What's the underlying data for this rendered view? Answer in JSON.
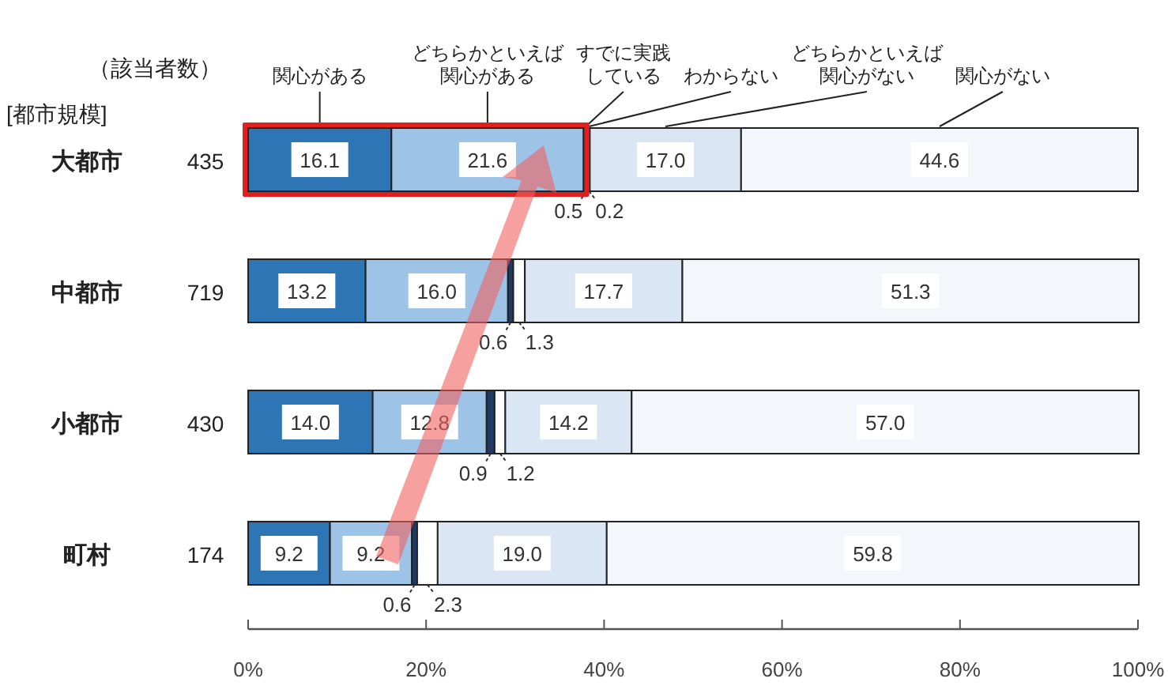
{
  "chart_data": {
    "type": "bar",
    "orientation": "horizontal",
    "stacked": true,
    "categories": [
      "大都市",
      "中都市",
      "小都市",
      "町村"
    ],
    "ylabel": "[都市規模]",
    "annotations": [
      "（該当者数）",
      "435",
      "719",
      "430",
      "174"
    ],
    "series": [
      {
        "name": "関心がある",
        "color": "#2e75b6",
        "values": [
          16.1,
          13.2,
          14.0,
          9.2
        ],
        "value_labels": [
          "16.1",
          "13.2",
          "14.0",
          "9.2"
        ]
      },
      {
        "name": "どちらかといえば関心がある",
        "color": "#9dc3e6",
        "values": [
          21.6,
          16.0,
          12.8,
          9.2
        ],
        "value_labels": [
          "21.6",
          "16.0",
          "12.8",
          "9.2"
        ]
      },
      {
        "name": "すでに実践している",
        "color": "#1f3864",
        "values": [
          0.5,
          0.6,
          0.9,
          0.6
        ],
        "value_labels": [
          "0.5",
          "0.6",
          "0.9",
          "0.6"
        ]
      },
      {
        "name": "わからない",
        "color": "#ffffff",
        "values": [
          0.2,
          1.3,
          1.2,
          2.3
        ],
        "value_labels": [
          "0.2",
          "1.3",
          "1.2",
          "2.3"
        ]
      },
      {
        "name": "どちらかといえば関心がない",
        "color": "#dae6f3",
        "values": [
          17.0,
          17.7,
          14.2,
          19.0
        ],
        "value_labels": [
          "17.0",
          "17.7",
          "14.2",
          "19.0"
        ]
      },
      {
        "name": "関心がない",
        "color": "#f3f7fc",
        "values": [
          44.6,
          51.3,
          57.0,
          59.8
        ],
        "value_labels": [
          "44.6",
          "51.3",
          "57.0",
          "59.8"
        ]
      }
    ],
    "xlim": [
      0,
      100
    ],
    "xticks": [
      {
        "value": 0,
        "label": "0%"
      },
      {
        "value": 20,
        "label": "20%"
      },
      {
        "value": 40,
        "label": "40%"
      },
      {
        "value": 60,
        "label": "60%"
      },
      {
        "value": 80,
        "label": "80%"
      },
      {
        "value": 100,
        "label": "100%"
      }
    ],
    "legend": "top",
    "grid": false
  }
}
